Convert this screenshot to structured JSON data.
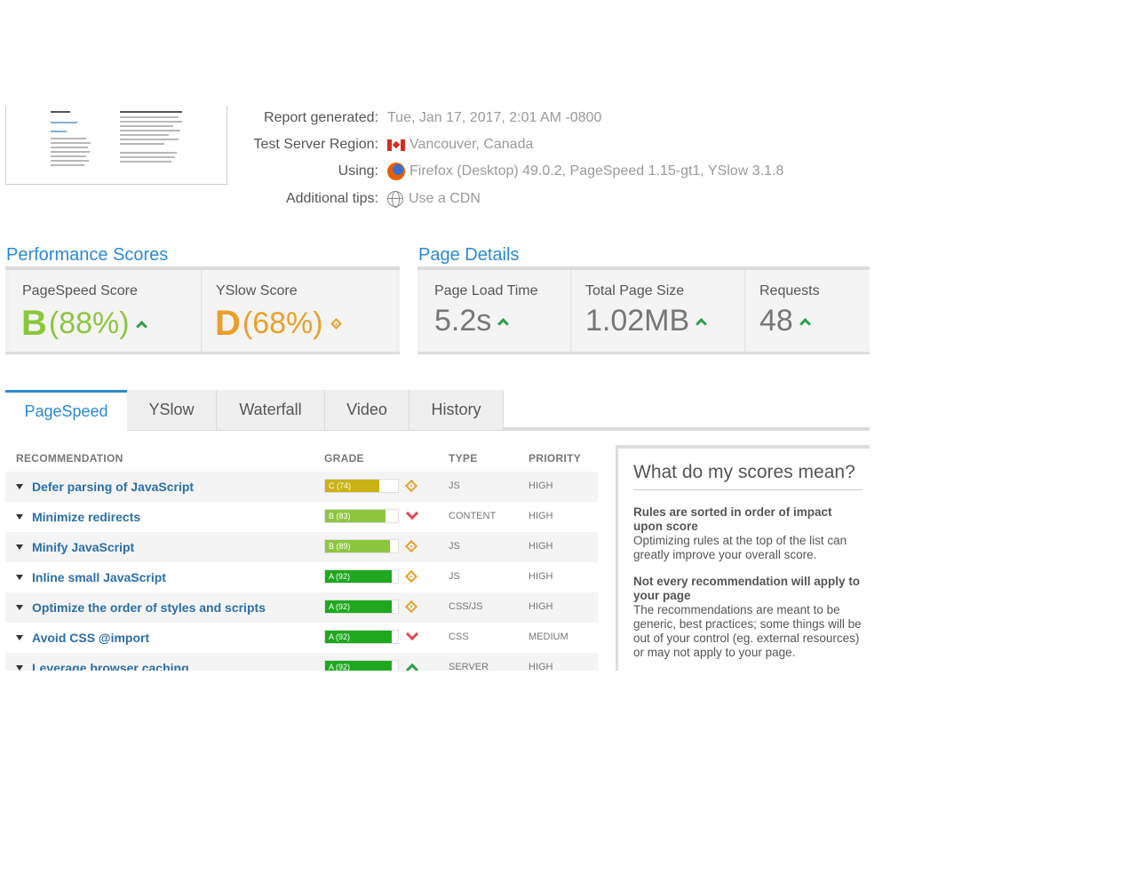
{
  "report": {
    "generated_label": "Report generated:",
    "generated_value": "Tue, Jan 17, 2017, 2:01 AM -0800",
    "region_label": "Test Server Region:",
    "region_value": "Vancouver, Canada",
    "using_label": "Using:",
    "using_value": "Firefox (Desktop) 49.0.2, PageSpeed 1.15-gt1, YSlow 3.1.8",
    "tips_label": "Additional tips:",
    "tips_value": "Use a CDN"
  },
  "performance": {
    "title": "Performance Scores",
    "pagespeed_label": "PageSpeed Score",
    "pagespeed_grade": "B",
    "pagespeed_pct": "(88%)",
    "yslow_label": "YSlow Score",
    "yslow_grade": "D",
    "yslow_pct": "(68%)",
    "colors": {
      "b": "#8cc63f",
      "d": "#e8a02a"
    }
  },
  "details": {
    "title": "Page Details",
    "load_label": "Page Load Time",
    "load_value": "5.2s",
    "size_label": "Total Page Size",
    "size_value": "1.02MB",
    "requests_label": "Requests",
    "requests_value": "48"
  },
  "tabs": [
    "PageSpeed",
    "YSlow",
    "Waterfall",
    "Video",
    "History"
  ],
  "table": {
    "headers": {
      "rec": "RECOMMENDATION",
      "grade": "GRADE",
      "type": "TYPE",
      "priority": "PRIORITY"
    },
    "rows": [
      {
        "name": "Defer parsing of JavaScript",
        "grade": "C (74)",
        "score": 74,
        "color": "#c9b316",
        "indicator": "diamond",
        "type": "JS",
        "priority": "HIGH"
      },
      {
        "name": "Minimize redirects",
        "grade": "B (83)",
        "score": 83,
        "color": "#8cc63f",
        "indicator": "down",
        "type": "CONTENT",
        "priority": "HIGH"
      },
      {
        "name": "Minify JavaScript",
        "grade": "B (89)",
        "score": 89,
        "color": "#8cc63f",
        "indicator": "diamond",
        "type": "JS",
        "priority": "HIGH"
      },
      {
        "name": "Inline small JavaScript",
        "grade": "A (92)",
        "score": 92,
        "color": "#1fa81f",
        "indicator": "diamond",
        "type": "JS",
        "priority": "HIGH"
      },
      {
        "name": "Optimize the order of styles and scripts",
        "grade": "A (92)",
        "score": 92,
        "color": "#1fa81f",
        "indicator": "diamond",
        "type": "CSS/JS",
        "priority": "HIGH"
      },
      {
        "name": "Avoid CSS @import",
        "grade": "A (92)",
        "score": 92,
        "color": "#1fa81f",
        "indicator": "down",
        "type": "CSS",
        "priority": "MEDIUM"
      },
      {
        "name": "Leverage browser caching",
        "grade": "A (92)",
        "score": 92,
        "color": "#1fa81f",
        "indicator": "up",
        "type": "SERVER",
        "priority": "HIGH"
      }
    ]
  },
  "side": {
    "title": "What do my scores mean?",
    "h1": "Rules are sorted in order of impact upon score",
    "p1": "Optimizing rules at the top of the list can greatly improve your overall score.",
    "h2": "Not every recommendation will apply to your page",
    "p2": "The recommendations are meant to be generic, best practices; some things will be out of your control (eg. external resources) or may not apply to your page."
  }
}
